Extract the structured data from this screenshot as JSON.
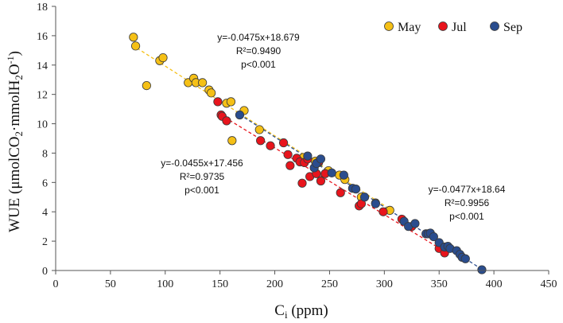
{
  "chart_data": {
    "type": "scatter",
    "xlabel_main": "C",
    "xlabel_sub": "i",
    "xlabel_unit": " (ppm)",
    "ylabel_main": "WUE (μmolCO",
    "ylabel_sub1": "2",
    "ylabel_mid": "·mmolH",
    "ylabel_sub2": "2",
    "ylabel_end": "O",
    "ylabel_sup": "-1",
    "ylabel_close": ")",
    "xlim": [
      0,
      450
    ],
    "ylim": [
      0,
      18
    ],
    "xticks": [
      0,
      50,
      100,
      150,
      200,
      250,
      300,
      350,
      400,
      450
    ],
    "yticks": [
      0,
      2,
      4,
      6,
      8,
      10,
      12,
      14,
      16,
      18
    ],
    "legend_position": "top-right",
    "grid": false,
    "series": [
      {
        "name": "May",
        "color": "#f5c016",
        "trend": {
          "slope": -0.0475,
          "intercept": 18.679,
          "x_range": [
            70,
            305
          ]
        },
        "annotation": [
          "y=-0.0475x+18.679",
          "R²=0.9490",
          "p<0.001"
        ],
        "points": [
          [
            71,
            15.9
          ],
          [
            73,
            15.3
          ],
          [
            83,
            12.6
          ],
          [
            95,
            14.3
          ],
          [
            98,
            14.5
          ],
          [
            121,
            12.8
          ],
          [
            126,
            13.1
          ],
          [
            128,
            12.8
          ],
          [
            134,
            12.8
          ],
          [
            140,
            12.3
          ],
          [
            142,
            12.1
          ],
          [
            156,
            11.4
          ],
          [
            160,
            11.5
          ],
          [
            161,
            8.85
          ],
          [
            172,
            10.9
          ],
          [
            186,
            9.6
          ],
          [
            226,
            7.7
          ],
          [
            237,
            7.45
          ],
          [
            240,
            7.35
          ],
          [
            249,
            6.8
          ],
          [
            259,
            6.5
          ],
          [
            264,
            6.2
          ],
          [
            279,
            5.0
          ],
          [
            292,
            4.6
          ],
          [
            305,
            4.1
          ]
        ]
      },
      {
        "name": "Jul",
        "color": "#e8141c",
        "trend": {
          "slope": -0.0455,
          "intercept": 17.456,
          "x_range": [
            150,
            355
          ]
        },
        "annotation": [
          "y=-0.0455x+17.456",
          "R²=0.9735",
          "p<0.001"
        ],
        "points": [
          [
            148,
            11.5
          ],
          [
            151,
            10.6
          ],
          [
            152,
            10.5
          ],
          [
            156,
            10.2
          ],
          [
            187,
            8.85
          ],
          [
            196,
            8.5
          ],
          [
            208,
            8.7
          ],
          [
            212,
            7.9
          ],
          [
            214,
            7.15
          ],
          [
            220,
            7.65
          ],
          [
            223,
            7.4
          ],
          [
            225,
            5.95
          ],
          [
            227,
            7.35
          ],
          [
            230,
            7.6
          ],
          [
            232,
            6.4
          ],
          [
            238,
            6.6
          ],
          [
            240,
            7.4
          ],
          [
            242,
            6.1
          ],
          [
            246,
            6.6
          ],
          [
            260,
            5.3
          ],
          [
            277,
            4.4
          ],
          [
            279,
            4.55
          ],
          [
            299,
            4.0
          ],
          [
            316,
            3.5
          ],
          [
            325,
            3.0
          ],
          [
            350,
            1.5
          ],
          [
            355,
            1.2
          ]
        ]
      },
      {
        "name": "Sep",
        "color": "#2a4d8e",
        "trend": {
          "slope": -0.0477,
          "intercept": 18.64,
          "x_range": [
            168,
            390
          ]
        },
        "annotation": [
          "y=-0.0477x+18.64",
          "R²=0.9956",
          "p<0.001"
        ],
        "points": [
          [
            168,
            10.6
          ],
          [
            230,
            7.8
          ],
          [
            236,
            7.0
          ],
          [
            238,
            7.3
          ],
          [
            242,
            7.6
          ],
          [
            252,
            6.65
          ],
          [
            263,
            6.5
          ],
          [
            271,
            5.6
          ],
          [
            274,
            5.55
          ],
          [
            282,
            5.0
          ],
          [
            292,
            4.55
          ],
          [
            318,
            3.35
          ],
          [
            322,
            3.0
          ],
          [
            328,
            3.2
          ],
          [
            338,
            2.5
          ],
          [
            340,
            2.5
          ],
          [
            342,
            2.55
          ],
          [
            345,
            2.3
          ],
          [
            350,
            1.9
          ],
          [
            355,
            1.6
          ],
          [
            358,
            1.65
          ],
          [
            360,
            1.5
          ],
          [
            366,
            1.35
          ],
          [
            369,
            1.1
          ],
          [
            371,
            0.9
          ],
          [
            374,
            0.8
          ],
          [
            389,
            0.05
          ]
        ]
      }
    ]
  }
}
